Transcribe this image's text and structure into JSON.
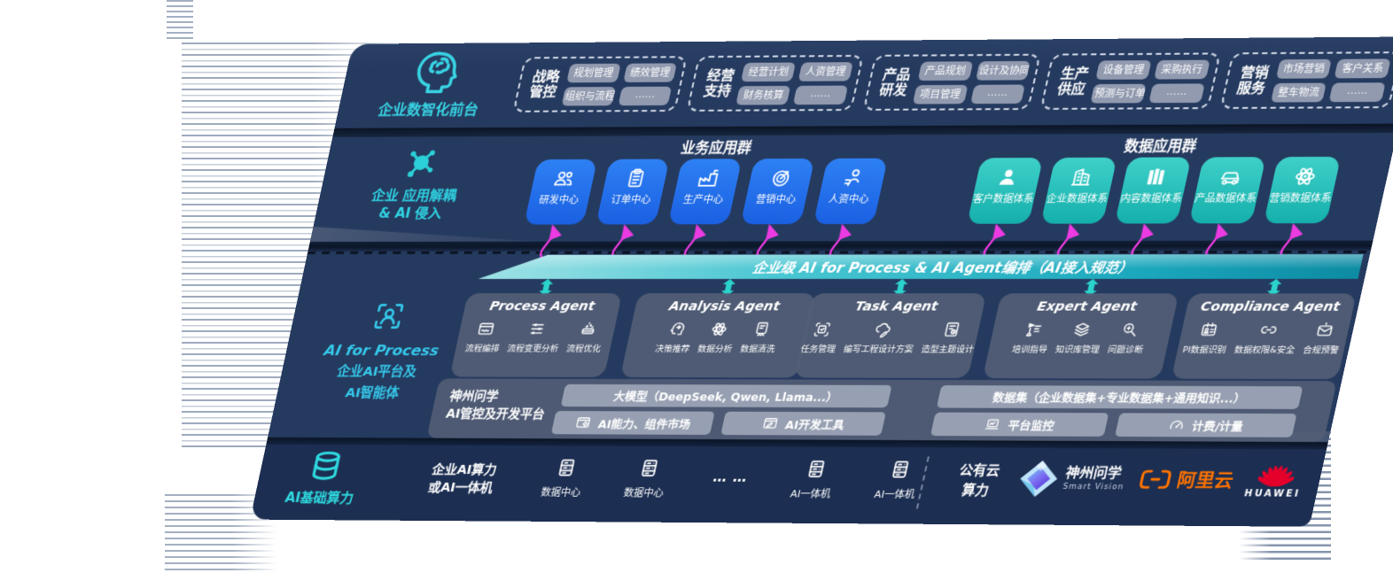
{
  "front_layer": {
    "label": "企业数智化前台",
    "groups": [
      {
        "title": [
          "战略",
          "管控"
        ],
        "items": [
          "规划管理",
          "绩效管理",
          "组织与流程",
          "……"
        ]
      },
      {
        "title": [
          "经营",
          "支持"
        ],
        "items": [
          "经营计划",
          "人资管理",
          "财务核算",
          "……"
        ]
      },
      {
        "title": [
          "产品",
          "研发"
        ],
        "items": [
          "产品规划",
          "设计及协同",
          "项目管理",
          "……"
        ]
      },
      {
        "title": [
          "生产",
          "供应"
        ],
        "items": [
          "设备管理",
          "采购执行",
          "预测与订单",
          "……"
        ]
      },
      {
        "title": [
          "营销",
          "服务"
        ],
        "items": [
          "市场营销",
          "客户关系",
          "整车物流",
          "……"
        ]
      }
    ]
  },
  "app_layer": {
    "label_l1": "企业 应用解耦",
    "label_l2": "& AI 侵入",
    "business": {
      "title": "业务应用群",
      "cards": [
        {
          "label": "研发中心",
          "icon": "team-icon"
        },
        {
          "label": "订单中心",
          "icon": "order-clipboard-icon"
        },
        {
          "label": "生产中心",
          "icon": "factory-icon"
        },
        {
          "label": "营销中心",
          "icon": "marketing-target-icon"
        },
        {
          "label": "人资中心",
          "icon": "hr-person-icon"
        }
      ]
    },
    "data": {
      "title": "数据应用群",
      "cards": [
        {
          "label": "客户数据体系",
          "icon": "customer-icon"
        },
        {
          "label": "企业数据体系",
          "icon": "enterprise-building-icon"
        },
        {
          "label": "内容数据体系",
          "icon": "content-books-icon"
        },
        {
          "label": "产品数据体系",
          "icon": "product-car-icon"
        },
        {
          "label": "营销数据体系",
          "icon": "marketing-atom-icon"
        }
      ]
    }
  },
  "orchestration": {
    "label": "企业级 AI for Process & AI Agent编排（AI接入规范）"
  },
  "agent_layer": {
    "label_en": "AI for Process",
    "label_l1": "企业AI平台及",
    "label_l2": "AI智能体",
    "agents": [
      {
        "title": "Process Agent",
        "items": [
          {
            "label": "流程编排",
            "icon": "workflow-icon"
          },
          {
            "label": "流程变更分析",
            "icon": "sliders-icon"
          },
          {
            "label": "流程优化",
            "icon": "optimize-icon"
          }
        ]
      },
      {
        "title": "Analysis Agent",
        "items": [
          {
            "label": "决策推荐",
            "icon": "decision-head-icon"
          },
          {
            "label": "数据分析",
            "icon": "analysis-atom-icon"
          },
          {
            "label": "数据清洗",
            "icon": "clean-doc-icon"
          }
        ]
      },
      {
        "title": "Task Agent",
        "items": [
          {
            "label": "任务管理",
            "icon": "task-grid-icon"
          },
          {
            "label": "编写工程设计方案",
            "icon": "cloud-edit-icon"
          },
          {
            "label": "造型主题设计",
            "icon": "design-doc-icon"
          }
        ]
      },
      {
        "title": "Expert Agent",
        "items": [
          {
            "label": "培训指导",
            "icon": "training-icon"
          },
          {
            "label": "知识库管理",
            "icon": "knowledge-layers-icon"
          },
          {
            "label": "问题诊断",
            "icon": "diagnose-icon"
          }
        ]
      },
      {
        "title": "Compliance Agent",
        "items": [
          {
            "label": "PI数据识别",
            "icon": "id-card-icon"
          },
          {
            "label": "数据权限&安全",
            "icon": "permission-lock-icon"
          },
          {
            "label": "合规预警",
            "icon": "alert-mail-icon"
          }
        ]
      }
    ]
  },
  "platform_layer": {
    "label_l1": "神州问学",
    "label_l2": "AI管控及开发平台",
    "model_bar": "大模型（DeepSeek, Qwen, Llama...）",
    "model_cells": [
      {
        "label": "AI能力、组件市场",
        "icon": "window-gear-icon"
      },
      {
        "label": "AI开发工具",
        "icon": "window-pen-icon"
      }
    ],
    "dataset_bar": "数据集（企业数据集+专业数据集+通用知识...）",
    "dataset_cells": [
      {
        "label": "平台监控",
        "icon": "monitor-icon"
      },
      {
        "label": "计费/计量",
        "icon": "gauge-icon"
      }
    ]
  },
  "infra_layer": {
    "label": "AI基础算力",
    "compute_l1": "企业AI算力",
    "compute_l2": "或AI一体机",
    "nodes": [
      {
        "label": "数据中心",
        "icon": "server-icon"
      },
      {
        "label": "数据中心",
        "icon": "server-icon"
      },
      {
        "label": "… …",
        "icon": "ellipsis"
      },
      {
        "label": "AI一体机",
        "icon": "server-icon"
      },
      {
        "label": "AI一体机",
        "icon": "server-icon"
      }
    ],
    "cloud_l1": "公有云",
    "cloud_l2": "算力",
    "logos": [
      {
        "name": "神州问学",
        "sub": "Smart Vision",
        "icon": "smartvision-logo"
      },
      {
        "name": "阿里云",
        "icon": "aliyun-logo"
      },
      {
        "name": "HUAWEI",
        "icon": "huawei-logo"
      }
    ]
  },
  "colors": {
    "slab_navy": "#253A5F",
    "slab_dark": "#1C2E51",
    "blue_card": "#1D6CED",
    "teal_card": "#29C3BE",
    "band_teal": "#25B6C3",
    "magenta": "#EC3BE2",
    "cyan_label": "#35D2E2",
    "pill_gray": "#9AA3B6",
    "panel_gray": "#57617A",
    "aliyun_orange": "#FF7300",
    "huawei_red": "#E4002B"
  }
}
